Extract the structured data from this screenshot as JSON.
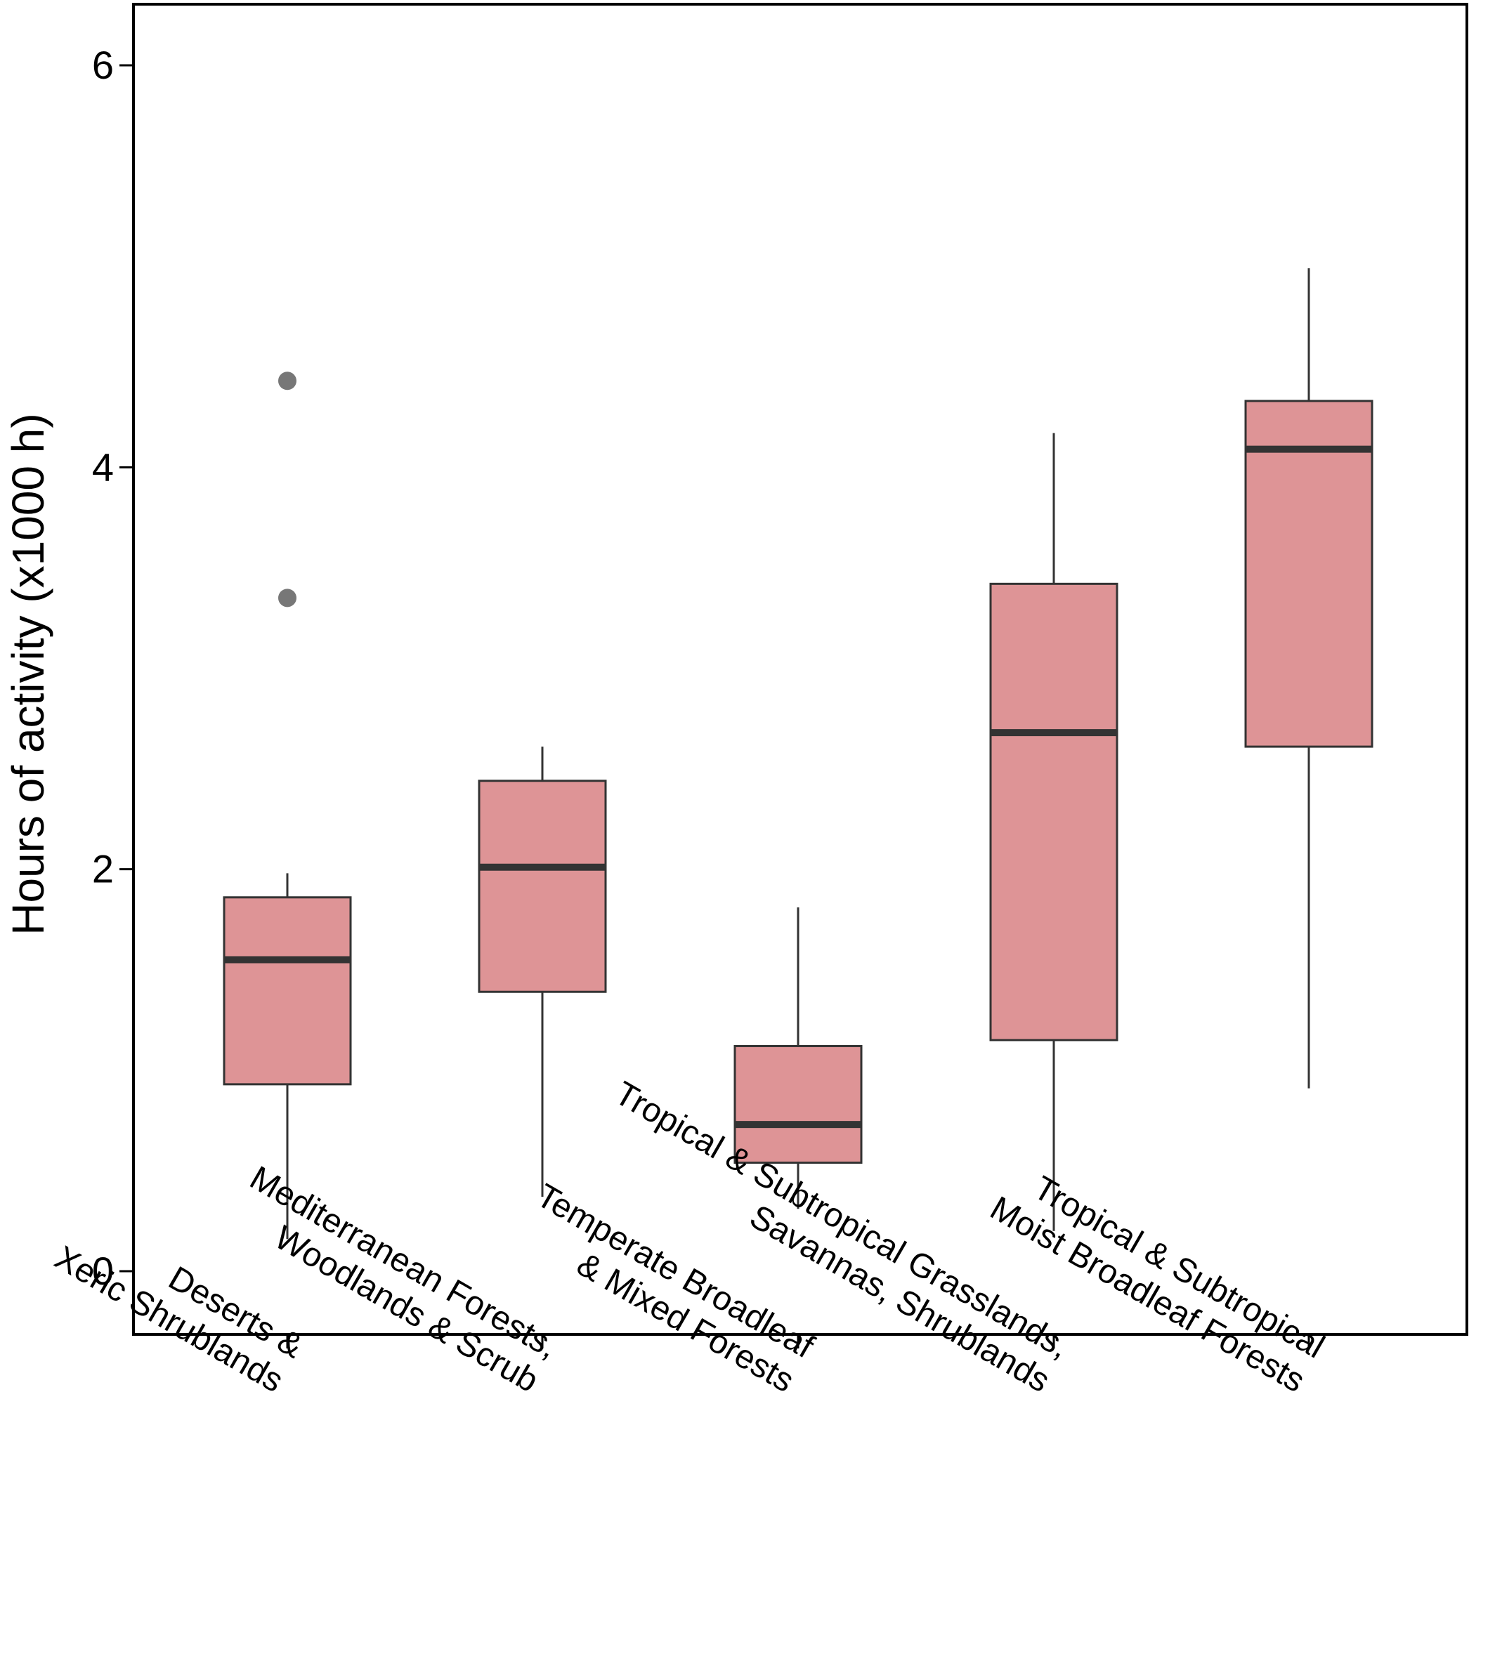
{
  "chart_data": {
    "type": "box",
    "title": "",
    "xlabel": "",
    "ylabel": "Hours of activity  (x1000 h)",
    "ylim": [
      -0.3,
      6.3
    ],
    "yticks": [
      0,
      2,
      4,
      6
    ],
    "ytick_labels": [
      "0",
      "2",
      "4",
      "6"
    ],
    "grid": false,
    "legend": "none",
    "box_color": "#DE9496",
    "box_edge_color": "#333333",
    "median_color": "#333333",
    "outlier_color": "#777777",
    "categories": [
      {
        "id": "deserts",
        "lines": [
          "Deserts &",
          "Xeric Shrublands"
        ]
      },
      {
        "id": "mediterranean",
        "lines": [
          "Mediterranean Forests,",
          "Woodlands & Scrub"
        ]
      },
      {
        "id": "temperate",
        "lines": [
          "Temperate Broadleaf",
          "& Mixed Forests"
        ]
      },
      {
        "id": "tropical-grasslands",
        "lines": [
          "Tropical & Subtropical Grasslands,",
          "Savannas, Shrublands"
        ]
      },
      {
        "id": "tropical-moist",
        "lines": [
          "Tropical & Subtropical",
          "Moist Broadleaf Forests"
        ]
      }
    ],
    "boxes": [
      {
        "whisker_low": 0.16,
        "q1": 0.93,
        "median": 1.55,
        "q3": 1.86,
        "whisker_high": 1.98,
        "outliers": [
          3.35,
          4.43
        ]
      },
      {
        "whisker_low": 0.37,
        "q1": 1.39,
        "median": 2.01,
        "q3": 2.44,
        "whisker_high": 2.61,
        "outliers": []
      },
      {
        "whisker_low": 0.31,
        "q1": 0.54,
        "median": 0.73,
        "q3": 1.12,
        "whisker_high": 1.81,
        "outliers": []
      },
      {
        "whisker_low": 0.2,
        "q1": 1.15,
        "median": 2.68,
        "q3": 3.42,
        "whisker_high": 4.17,
        "outliers": []
      },
      {
        "whisker_low": 0.91,
        "q1": 2.61,
        "median": 4.09,
        "q3": 4.33,
        "whisker_high": 4.99,
        "outliers": []
      }
    ]
  }
}
